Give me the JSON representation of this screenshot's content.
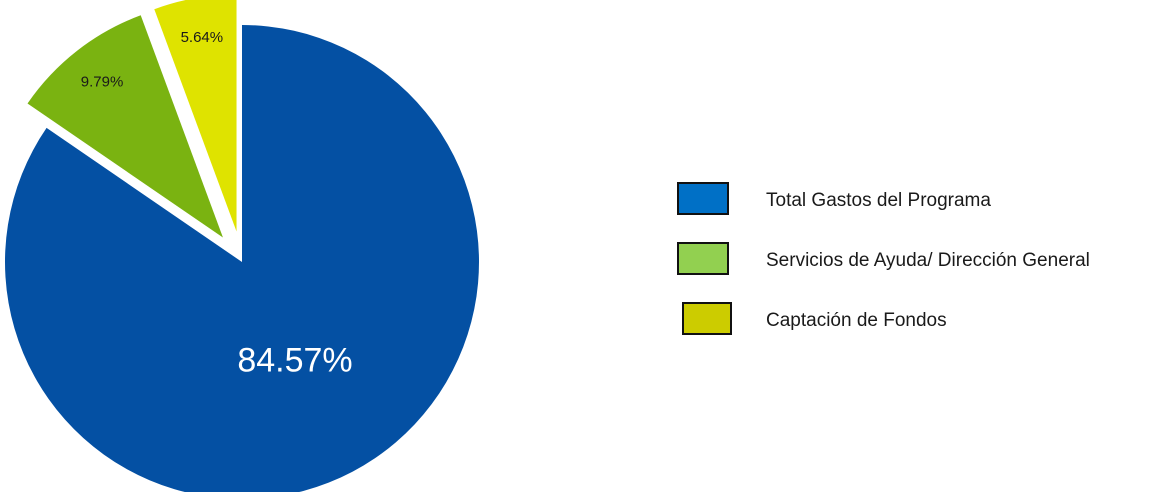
{
  "chart_data": {
    "type": "pie",
    "title": "",
    "categories": [
      "Total Gastos del Programa",
      "Servicios de Ayuda/ Dirección General",
      "Captación de Fondos"
    ],
    "values": [
      84.57,
      9.79,
      5.64
    ],
    "value_labels": [
      "84.57%",
      "9.79%",
      "5.64%"
    ],
    "colors": [
      "#0450a3",
      "#7ab311",
      "#dfe300"
    ],
    "label_colors": [
      "#ffffff",
      "#1a1a1a",
      "#1a1a1a"
    ],
    "exploded": [
      "Servicios de Ayuda/ Dirección General",
      "Captación de Fondos"
    ],
    "start_angle": "12 o'clock, clockwise",
    "legend": {
      "position": "right",
      "items": [
        {
          "label": "Total Gastos del Programa",
          "color": "#0070c6"
        },
        {
          "label": "Servicios de Ayuda/ Dirección General",
          "color": "#92d050"
        },
        {
          "label": "Captación de Fondos",
          "color": "#cccc00"
        }
      ]
    }
  }
}
